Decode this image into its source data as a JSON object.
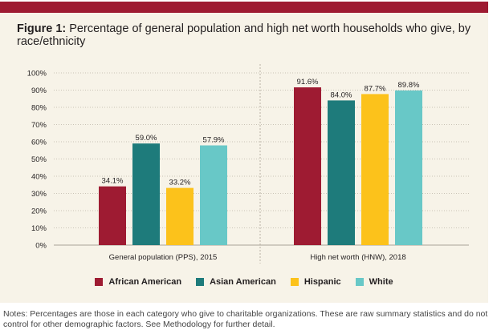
{
  "figure": {
    "label": "Figure 1:",
    "title": "Percentage of general population and high net worth households who give, by race/ethnicity"
  },
  "chart_data": {
    "type": "bar",
    "categories": [
      "General population (PPS), 2015",
      "High net worth (HNW), 2018"
    ],
    "series": [
      {
        "name": "African American",
        "color": "#9e1b32",
        "values": [
          34.1,
          91.6
        ],
        "labels": [
          "34.1%",
          "91.6%"
        ]
      },
      {
        "name": "Asian American",
        "color": "#1e7b7b",
        "values": [
          59.0,
          84.0
        ],
        "labels": [
          "59.0%",
          "84.0%"
        ]
      },
      {
        "name": "Hispanic",
        "color": "#fcc21b",
        "values": [
          33.2,
          87.7
        ],
        "labels": [
          "33.2%",
          "87.7%"
        ]
      },
      {
        "name": "White",
        "color": "#68c8c7",
        "values": [
          57.9,
          89.8
        ],
        "labels": [
          "57.9%",
          "89.8%"
        ]
      }
    ],
    "ylim": [
      0,
      100
    ],
    "yticks": [
      "0%",
      "10%",
      "20%",
      "30%",
      "40%",
      "50%",
      "60%",
      "70%",
      "80%",
      "90%",
      "100%"
    ],
    "grid": true,
    "legend_position": "bottom"
  },
  "notes": "Notes: Percentages are those in each category who give to charitable organizations. These are raw summary statistics and do not control for other demographic factors. See Methodology for further detail."
}
